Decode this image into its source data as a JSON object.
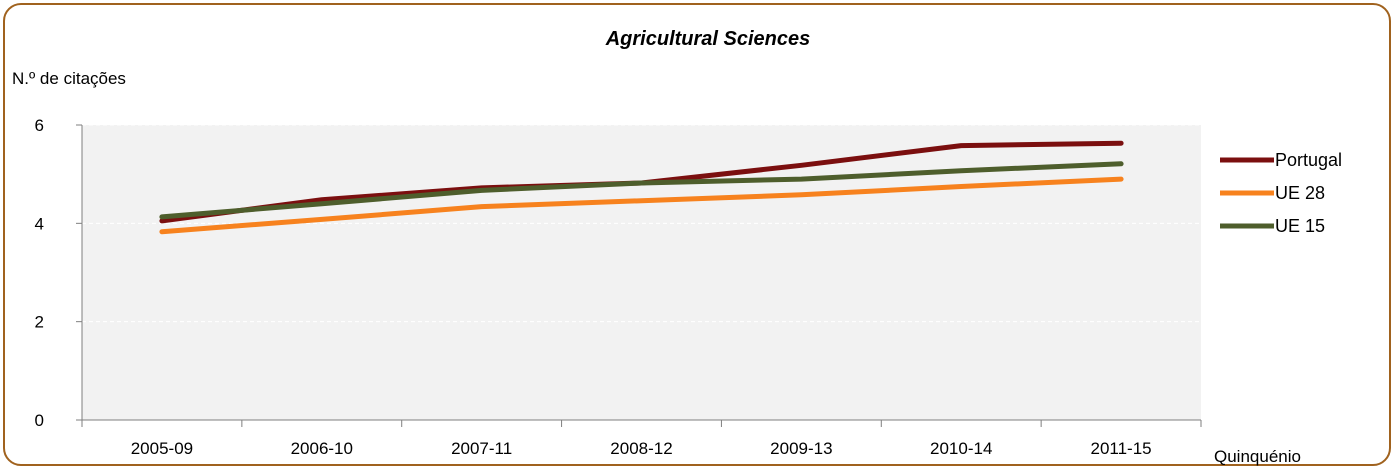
{
  "chart_data": {
    "type": "line",
    "title": "Agricultural Sciences",
    "ylabel": "N.º de citações",
    "xlabel": "Quinquénio",
    "categories": [
      "2005-09",
      "2006-10",
      "2007-11",
      "2008-12",
      "2009-13",
      "2010-14",
      "2011-15"
    ],
    "ylim": [
      0,
      6
    ],
    "yticks": [
      0,
      2,
      4,
      6
    ],
    "grid": true,
    "legend_position": "right",
    "series": [
      {
        "name": "Portugal",
        "color": "#7b0f0f",
        "values": [
          4.05,
          4.48,
          4.72,
          4.82,
          5.18,
          5.58,
          5.63
        ]
      },
      {
        "name": "UE 28",
        "color": "#f7821e",
        "values": [
          3.83,
          4.08,
          4.34,
          4.46,
          4.58,
          4.75,
          4.9
        ]
      },
      {
        "name": "UE 15",
        "color": "#4e5e2c",
        "values": [
          4.13,
          4.4,
          4.67,
          4.82,
          4.9,
          5.07,
          5.21
        ]
      }
    ]
  }
}
